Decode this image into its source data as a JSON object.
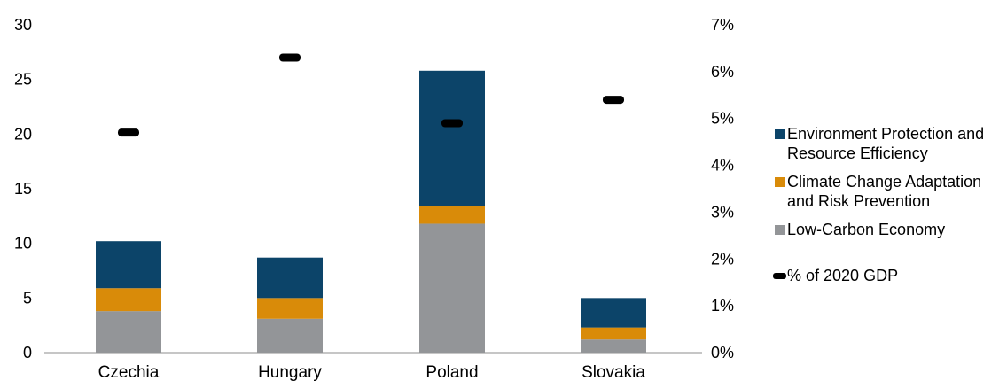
{
  "chart_data": {
    "type": "bar",
    "stacked": true,
    "categories": [
      "Czechia",
      "Hungary",
      "Poland",
      "Slovakia"
    ],
    "series": [
      {
        "name": "Low-Carbon Economy",
        "color": "#939598",
        "values": [
          3.8,
          3.1,
          11.8,
          1.2
        ]
      },
      {
        "name": "Climate Change Adaptation and Risk Prevention",
        "color": "#d98b09",
        "values": [
          2.1,
          1.9,
          1.6,
          1.1
        ]
      },
      {
        "name": "Environment Protection and Resource Efficiency",
        "color": "#0c4469",
        "values": [
          4.3,
          3.7,
          12.4,
          2.7
        ]
      }
    ],
    "secondary_series": {
      "name": "% of 2020 GDP",
      "type": "marker",
      "color": "#000000",
      "values": [
        0.047,
        0.063,
        0.049,
        0.054
      ]
    },
    "y_left": {
      "min": 0,
      "max": 30,
      "ticks": [
        "0",
        "5",
        "10",
        "15",
        "20",
        "25",
        "30"
      ]
    },
    "y_right": {
      "min": 0,
      "max": 0.07,
      "ticks": [
        "0%",
        "1%",
        "2%",
        "3%",
        "4%",
        "5%",
        "6%",
        "7%"
      ]
    },
    "legend": {
      "position": "right",
      "items": [
        {
          "label_line1": "Environment Protection and",
          "label_line2": "Resource Efficiency",
          "color": "#0c4469"
        },
        {
          "label_line1": "Climate Change Adaptation",
          "label_line2": "and Risk Prevention",
          "color": "#d98b09"
        },
        {
          "label_line1": "Low-Carbon Economy",
          "label_line2": "",
          "color": "#939598"
        },
        {
          "label_line1": "% of 2020 GDP",
          "label_line2": "",
          "color": "#000000",
          "marker": true
        }
      ]
    }
  }
}
